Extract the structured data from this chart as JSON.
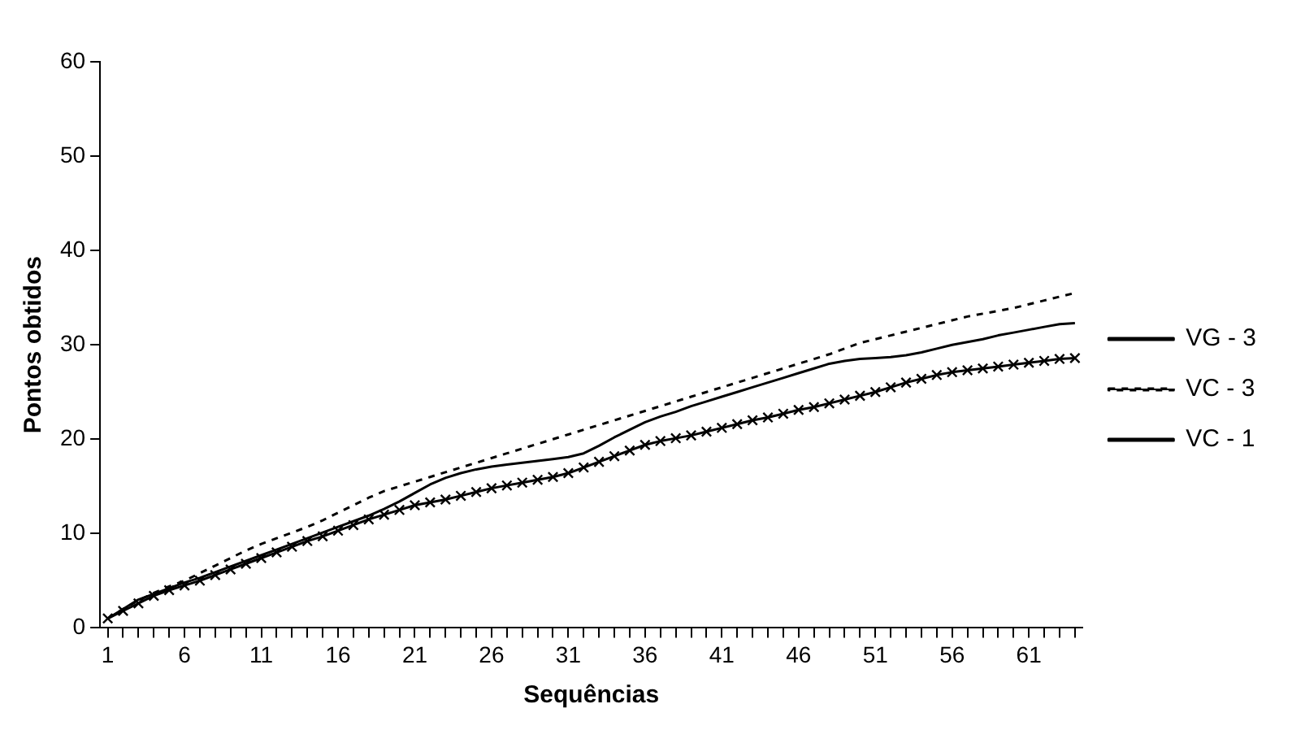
{
  "chart_data": {
    "type": "line",
    "xlabel": "Sequências",
    "ylabel": "Pontos obtidos",
    "x": [
      1,
      2,
      3,
      4,
      5,
      6,
      7,
      8,
      9,
      10,
      11,
      12,
      13,
      14,
      15,
      16,
      17,
      18,
      19,
      20,
      21,
      22,
      23,
      24,
      25,
      26,
      27,
      28,
      29,
      30,
      31,
      32,
      33,
      34,
      35,
      36,
      37,
      38,
      39,
      40,
      41,
      42,
      43,
      44,
      45,
      46,
      47,
      48,
      49,
      50,
      51,
      52,
      53,
      54,
      55,
      56,
      57,
      58,
      59,
      60,
      61,
      62,
      63,
      64
    ],
    "xlim": [
      0.5,
      64.5
    ],
    "xticks": [
      1,
      {
        "value": 2,
        "label": null
      },
      {
        "value": 3,
        "label": null
      },
      {
        "value": 4,
        "label": null
      },
      {
        "value": 5,
        "label": null
      },
      6,
      {
        "value": 7,
        "label": null
      },
      {
        "value": 8,
        "label": null
      },
      {
        "value": 9,
        "label": null
      },
      {
        "value": 10,
        "label": null
      },
      11,
      {
        "value": 12,
        "label": null
      },
      {
        "value": 13,
        "label": null
      },
      {
        "value": 14,
        "label": null
      },
      {
        "value": 15,
        "label": null
      },
      16,
      {
        "value": 17,
        "label": null
      },
      {
        "value": 18,
        "label": null
      },
      {
        "value": 19,
        "label": null
      },
      {
        "value": 20,
        "label": null
      },
      21,
      {
        "value": 22,
        "label": null
      },
      {
        "value": 23,
        "label": null
      },
      {
        "value": 24,
        "label": null
      },
      {
        "value": 25,
        "label": null
      },
      26,
      {
        "value": 27,
        "label": null
      },
      {
        "value": 28,
        "label": null
      },
      {
        "value": 29,
        "label": null
      },
      {
        "value": 30,
        "label": null
      },
      31,
      {
        "value": 32,
        "label": null
      },
      {
        "value": 33,
        "label": null
      },
      {
        "value": 34,
        "label": null
      },
      {
        "value": 35,
        "label": null
      },
      36,
      {
        "value": 37,
        "label": null
      },
      {
        "value": 38,
        "label": null
      },
      {
        "value": 39,
        "label": null
      },
      {
        "value": 40,
        "label": null
      },
      41,
      {
        "value": 42,
        "label": null
      },
      {
        "value": 43,
        "label": null
      },
      {
        "value": 44,
        "label": null
      },
      {
        "value": 45,
        "label": null
      },
      46,
      {
        "value": 47,
        "label": null
      },
      {
        "value": 48,
        "label": null
      },
      {
        "value": 49,
        "label": null
      },
      {
        "value": 50,
        "label": null
      },
      51,
      {
        "value": 52,
        "label": null
      },
      {
        "value": 53,
        "label": null
      },
      {
        "value": 54,
        "label": null
      },
      {
        "value": 55,
        "label": null
      },
      56,
      {
        "value": 57,
        "label": null
      },
      {
        "value": 58,
        "label": null
      },
      {
        "value": 59,
        "label": null
      },
      {
        "value": 60,
        "label": null
      },
      61,
      {
        "value": 62,
        "label": null
      },
      {
        "value": 63,
        "label": null
      },
      {
        "value": 64,
        "label": null
      }
    ],
    "ylim": [
      0,
      60
    ],
    "yticks": [
      0,
      10,
      20,
      30,
      40,
      50,
      60
    ],
    "grid": false,
    "legend": "right",
    "series": [
      {
        "name": "VG - 3",
        "color": "#000000",
        "line_style": "solid",
        "marker": "none",
        "values": [
          1,
          2,
          3,
          3.6,
          4.2,
          4.8,
          5.3,
          5.9,
          6.5,
          7.1,
          7.7,
          8.3,
          8.9,
          9.5,
          10.1,
          10.7,
          11.3,
          11.9,
          12.6,
          13.4,
          14.3,
          15.2,
          15.9,
          16.4,
          16.8,
          17.1,
          17.3,
          17.5,
          17.7,
          17.9,
          18.1,
          18.5,
          19.3,
          20.2,
          21,
          21.8,
          22.4,
          22.9,
          23.5,
          24,
          24.5,
          25,
          25.5,
          26,
          26.5,
          27,
          27.5,
          28,
          28.3,
          28.5,
          28.6,
          28.7,
          28.9,
          29.2,
          29.6,
          30,
          30.3,
          30.6,
          31,
          31.3,
          31.6,
          31.9,
          32.2,
          32.3
        ]
      },
      {
        "name": "VC - 3",
        "color": "#000000",
        "line_style": "dashed",
        "marker": "none",
        "values": [
          1,
          2,
          2.9,
          3.7,
          4.4,
          5,
          5.8,
          6.6,
          7.4,
          8.2,
          8.9,
          9.5,
          10.1,
          10.7,
          11.4,
          12.2,
          13,
          13.8,
          14.5,
          15,
          15.5,
          16,
          16.5,
          17,
          17.5,
          18,
          18.5,
          19,
          19.5,
          20,
          20.5,
          21,
          21.5,
          22,
          22.5,
          23,
          23.5,
          24,
          24.5,
          25,
          25.5,
          26,
          26.5,
          27,
          27.5,
          28,
          28.5,
          29,
          29.6,
          30.2,
          30.6,
          31,
          31.4,
          31.8,
          32.2,
          32.6,
          33,
          33.3,
          33.6,
          33.9,
          34.3,
          34.7,
          35.1,
          35.5
        ]
      },
      {
        "name": "VC - 1",
        "color": "#000000",
        "line_style": "solid",
        "marker": "cross",
        "values": [
          1,
          1.8,
          2.6,
          3.4,
          4,
          4.5,
          5,
          5.6,
          6.2,
          6.8,
          7.4,
          8,
          8.6,
          9.2,
          9.7,
          10.3,
          10.9,
          11.5,
          12,
          12.5,
          13,
          13.3,
          13.6,
          14,
          14.4,
          14.8,
          15.1,
          15.4,
          15.7,
          16,
          16.4,
          17,
          17.6,
          18.2,
          18.8,
          19.4,
          19.8,
          20.1,
          20.4,
          20.8,
          21.2,
          21.6,
          22,
          22.3,
          22.7,
          23.1,
          23.4,
          23.8,
          24.2,
          24.6,
          25,
          25.5,
          26,
          26.4,
          26.8,
          27.1,
          27.3,
          27.5,
          27.7,
          27.9,
          28.1,
          28.3,
          28.5,
          28.6
        ]
      }
    ]
  }
}
